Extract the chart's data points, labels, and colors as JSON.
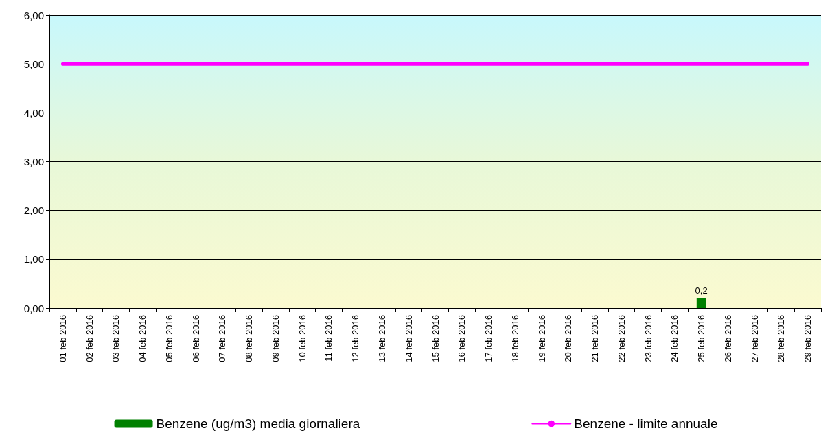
{
  "chart_data": {
    "type": "bar",
    "categories": [
      "01 feb 2016",
      "02 feb 2016",
      "03 feb 2016",
      "04 feb 2016",
      "05 feb 2016",
      "06 feb 2016",
      "07 feb 2016",
      "08 feb 2016",
      "09 feb 2016",
      "10 feb 2016",
      "11 feb 2016",
      "12 feb 2016",
      "13 feb 2016",
      "14 feb 2016",
      "15 feb 2016",
      "16 feb 2016",
      "17 feb 2016",
      "18 feb 2016",
      "19 feb 2016",
      "20 feb 2016",
      "21 feb 2016",
      "22 feb 2016",
      "23 feb 2016",
      "24 feb 2016",
      "25 feb 2016",
      "26 feb 2016",
      "27 feb 2016",
      "28 feb 2016",
      "29 feb 2016"
    ],
    "series": [
      {
        "name": "Benzene (ug/m3) media giornaliera",
        "color": "#008000",
        "values": [
          null,
          null,
          null,
          null,
          null,
          null,
          null,
          null,
          null,
          null,
          null,
          null,
          null,
          null,
          null,
          null,
          null,
          null,
          null,
          null,
          null,
          null,
          null,
          null,
          0.2,
          null,
          null,
          null,
          null
        ],
        "value_labels": [
          null,
          null,
          null,
          null,
          null,
          null,
          null,
          null,
          null,
          null,
          null,
          null,
          null,
          null,
          null,
          null,
          null,
          null,
          null,
          null,
          null,
          null,
          null,
          null,
          "0,2",
          null,
          null,
          null,
          null
        ]
      },
      {
        "name": "Benzene - limite annuale",
        "type": "line",
        "color": "#ff00ff",
        "values": [
          5,
          5,
          5,
          5,
          5,
          5,
          5,
          5,
          5,
          5,
          5,
          5,
          5,
          5,
          5,
          5,
          5,
          5,
          5,
          5,
          5,
          5,
          5,
          5,
          5,
          5,
          5,
          5,
          5
        ]
      }
    ],
    "ylim": [
      0,
      6
    ],
    "yticks": [
      {
        "value": 0,
        "label": "0,00"
      },
      {
        "value": 1,
        "label": "1,00"
      },
      {
        "value": 2,
        "label": "2,00"
      },
      {
        "value": 3,
        "label": "3,00"
      },
      {
        "value": 4,
        "label": "4,00"
      },
      {
        "value": 5,
        "label": "5,00"
      },
      {
        "value": 6,
        "label": "6,00"
      }
    ],
    "grid": "y",
    "legend": "bottom",
    "marker": "none",
    "line_style": "solid"
  }
}
